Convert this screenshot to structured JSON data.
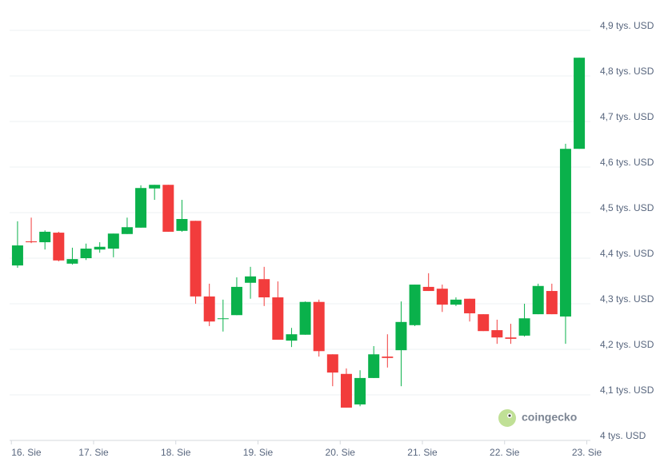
{
  "chart_data": {
    "type": "candlestick",
    "categories": [
      null,
      null,
      null,
      null,
      null,
      null,
      null,
      null,
      null,
      null,
      null,
      null,
      null,
      null,
      null,
      null,
      null,
      null,
      null,
      null,
      null,
      null,
      null,
      null,
      null,
      null,
      null,
      null,
      null,
      null,
      null,
      null,
      null,
      null,
      null,
      null,
      null,
      null,
      null,
      null,
      null,
      null
    ],
    "open": [
      4384,
      4437,
      4435,
      4456,
      4388,
      4400,
      4419,
      4421,
      4453,
      4467,
      4553,
      4561,
      4460,
      4482,
      4316,
      4267,
      4275,
      4346,
      4354,
      4314,
      4219,
      4232,
      4304,
      4189,
      4146,
      4079,
      4137,
      4184,
      4198,
      4253,
      4337,
      4333,
      4298,
      4311,
      4277,
      4242,
      4226,
      4230,
      4277,
      4328,
      4272,
      4640
    ],
    "high": [
      4481,
      4489,
      4461,
      4458,
      4423,
      4432,
      4435,
      4454,
      4489,
      4560,
      4561,
      4561,
      4528,
      4482,
      4344,
      4309,
      4358,
      4381,
      4381,
      4349,
      4247,
      4305,
      4309,
      4189,
      4158,
      4154,
      4207,
      4233,
      4305,
      4342,
      4367,
      4342,
      4314,
      4311,
      4277,
      4265,
      4256,
      4300,
      4344,
      4344,
      4651,
      4840
    ],
    "low": [
      4379,
      4433,
      4419,
      4393,
      4386,
      4396,
      4412,
      4402,
      4453,
      4467,
      4528,
      4458,
      4458,
      4300,
      4251,
      4239,
      4275,
      4311,
      4295,
      4221,
      4205,
      4232,
      4184,
      4119,
      4072,
      4075,
      4137,
      4160,
      4119,
      4251,
      4328,
      4282,
      4295,
      4261,
      4240,
      4212,
      4212,
      4228,
      4277,
      4277,
      4212,
      4640
    ],
    "close": [
      4428,
      4435,
      4458,
      4395,
      4398,
      4421,
      4425,
      4454,
      4468,
      4554,
      4561,
      4458,
      4486,
      4316,
      4261,
      4268,
      4337,
      4360,
      4314,
      4221,
      4233,
      4304,
      4196,
      4149,
      4072,
      4137,
      4189,
      4181,
      4260,
      4342,
      4328,
      4298,
      4309,
      4279,
      4240,
      4226,
      4223,
      4268,
      4339,
      4277,
      4640,
      4840
    ],
    "up_color": "#0ab14b",
    "down_color": "#f23c3c",
    "xlim": [
      -0.58,
      41.93
    ],
    "xticks": [
      {
        "value": -0.45,
        "label": "16. Sie"
      },
      {
        "value": 5.55,
        "label": "17. Sie"
      },
      {
        "value": 11.55,
        "label": "18. Sie"
      },
      {
        "value": 17.55,
        "label": "19. Sie"
      },
      {
        "value": 23.55,
        "label": "20. Sie"
      },
      {
        "value": 29.55,
        "label": "21. Sie"
      },
      {
        "value": 35.55,
        "label": "22. Sie"
      },
      {
        "value": 41.55,
        "label": "23. Sie"
      }
    ],
    "ylim": [
      4000,
      4900
    ],
    "yticks": [
      {
        "value": 4000,
        "label": "4 tys. USD"
      },
      {
        "value": 4100,
        "label": "4,1 tys. USD"
      },
      {
        "value": 4200,
        "label": "4,2 tys. USD"
      },
      {
        "value": 4300,
        "label": "4,3 tys. USD"
      },
      {
        "value": 4400,
        "label": "4,4 tys. USD"
      },
      {
        "value": 4500,
        "label": "4,5 tys. USD"
      },
      {
        "value": 4600,
        "label": "4,6 tys. USD"
      },
      {
        "value": 4700,
        "label": "4,7 tys. USD"
      },
      {
        "value": 4800,
        "label": "4,8 tys. USD"
      },
      {
        "value": 4900,
        "label": "4,9 tys. USD"
      }
    ],
    "grid": true,
    "watermark": "coingecko"
  }
}
